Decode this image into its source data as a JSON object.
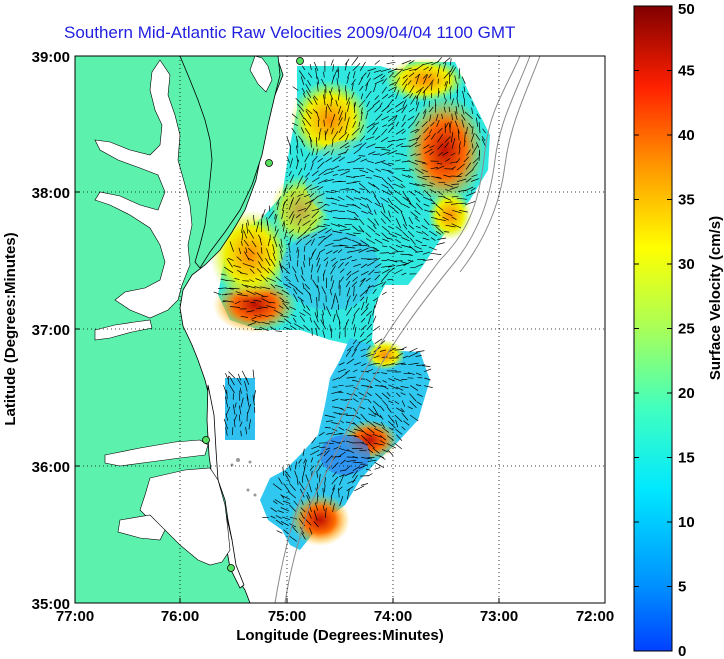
{
  "title": "Southern Mid-Atlantic Raw Velocities 2009/04/04 1100 GMT",
  "map": {
    "xlabel": "Longitude (Degrees:Minutes)",
    "ylabel": "Latitude (Degrees:Minutes)",
    "lon_ticks": [
      "77:00",
      "76:00",
      "75:00",
      "74:00",
      "73:00",
      "72:00"
    ],
    "lat_ticks": [
      "39:00",
      "38:00",
      "37:00",
      "36:00",
      "35:00"
    ],
    "land_color": "#5cf2ad",
    "grid": "dotted"
  },
  "colorbar": {
    "label": "Surface Velocity (cm/s)",
    "ticks": [
      "50",
      "45",
      "40",
      "35",
      "30",
      "25",
      "20",
      "15",
      "10",
      "5",
      "0"
    ],
    "range": [
      0,
      50
    ]
  }
}
